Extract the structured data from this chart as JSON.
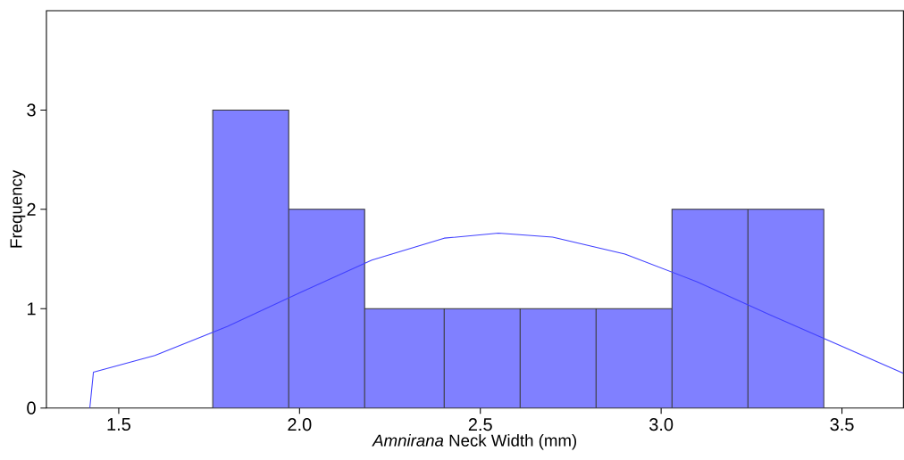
{
  "chart_data": {
    "type": "histogram",
    "xlabel": "*Amnirana* Neck Width (mm)",
    "ylabel": "Frequency",
    "bins": [
      1.76,
      1.97,
      2.18,
      2.4,
      2.61,
      2.82,
      3.03,
      3.24,
      3.45
    ],
    "values": [
      3,
      2,
      1,
      1,
      1,
      1,
      2,
      2
    ],
    "color": "#8080ff",
    "series": [
      {
        "type": "line",
        "color": "#4040ff",
        "x": [
          1.42,
          1.43,
          1.6,
          1.8,
          2.0,
          2.2,
          2.4,
          2.55,
          2.7,
          2.9,
          3.1,
          3.3,
          3.5,
          3.67
        ],
        "values": [
          0,
          0.36,
          0.53,
          0.82,
          1.16,
          1.49,
          1.71,
          1.76,
          1.72,
          1.55,
          1.27,
          0.94,
          0.62,
          0.35
        ]
      }
    ],
    "xlim": [
      1.3,
      3.67
    ],
    "ylim": [
      0,
      4
    ],
    "xticks": [
      1.5,
      {
        "value": 2,
        "label": "2.0"
      },
      2.5,
      {
        "value": 3,
        "label": "3.0"
      },
      3.5
    ],
    "yticks": [
      0,
      1,
      2,
      3
    ]
  }
}
